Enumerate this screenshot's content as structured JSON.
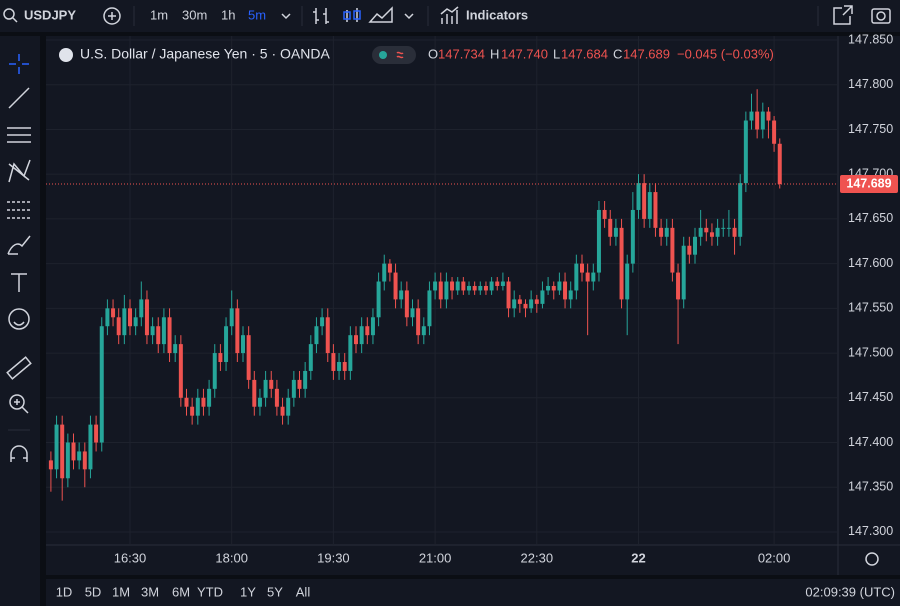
{
  "toolbar": {
    "symbol": "USDJPY",
    "intervals": [
      "1m",
      "30m",
      "1h",
      "5m"
    ],
    "indicators": "Indicators"
  },
  "legend": {
    "title": "U.S. Dollar / Japanese Yen · 5 · OANDA",
    "labels": [
      "O",
      "H",
      "L",
      "C"
    ],
    "values": [
      "147.734",
      "147.740",
      "147.684",
      "147.689"
    ],
    "change": "−0.045 (−0.03%)"
  },
  "range_buttons": [
    "1D",
    "5D",
    "1M",
    "3M",
    "6M",
    "YTD",
    "1Y",
    "5Y",
    "All"
  ],
  "clock": "02:09:39 (UTC)",
  "chart_data": {
    "type": "candlestick",
    "up_color": "#26a69a",
    "down_color": "#ef5350",
    "grid": true,
    "ylim": [
      147.2854,
      147.8545
    ],
    "yticks": [
      {
        "value": 147.3,
        "label": "147.300"
      },
      {
        "value": 147.35,
        "label": "147.350"
      },
      {
        "value": 147.4,
        "label": "147.400"
      },
      {
        "value": 147.45,
        "label": "147.450"
      },
      {
        "value": 147.5,
        "label": "147.500"
      },
      {
        "value": 147.55,
        "label": "147.550"
      },
      {
        "value": 147.6,
        "label": "147.600"
      },
      {
        "value": 147.65,
        "label": "147.650"
      },
      {
        "value": 147.7,
        "label": "147.700"
      },
      {
        "value": 147.75,
        "label": "147.750"
      },
      {
        "value": 147.8,
        "label": "147.800"
      },
      {
        "value": 147.85,
        "label": "147.850"
      }
    ],
    "categories": [
      null,
      null,
      null,
      null,
      null,
      null,
      null,
      null,
      null,
      null,
      null,
      null,
      null,
      null,
      "16:30",
      null,
      null,
      null,
      null,
      null,
      null,
      null,
      null,
      null,
      null,
      null,
      null,
      null,
      null,
      null,
      null,
      null,
      "18:00",
      null,
      null,
      null,
      null,
      null,
      null,
      null,
      null,
      null,
      null,
      null,
      null,
      null,
      null,
      null,
      null,
      null,
      "19:30",
      null,
      null,
      null,
      null,
      null,
      null,
      null,
      null,
      null,
      null,
      null,
      null,
      null,
      null,
      null,
      null,
      null,
      "21:00",
      null,
      null,
      null,
      null,
      null,
      null,
      null,
      null,
      null,
      null,
      null,
      null,
      null,
      null,
      null,
      null,
      null,
      "22:30",
      null,
      null,
      null,
      null,
      null,
      null,
      null,
      null,
      null,
      null,
      null,
      null,
      null,
      null,
      null,
      null,
      null,
      "22",
      null,
      null,
      null,
      null,
      null,
      null,
      null,
      null,
      null,
      null,
      null,
      null,
      null,
      null,
      null,
      null,
      null,
      null,
      null,
      null,
      null,
      null,
      null,
      "02:00",
      null
    ],
    "open": [
      147.38,
      147.37,
      147.42,
      147.36,
      147.4,
      147.38,
      147.39,
      147.37,
      147.42,
      147.4,
      147.53,
      147.55,
      147.54,
      147.52,
      147.55,
      147.53,
      147.54,
      147.56,
      147.52,
      147.53,
      147.51,
      147.54,
      147.5,
      147.51,
      147.45,
      147.44,
      147.43,
      147.45,
      147.44,
      147.46,
      147.5,
      147.49,
      147.53,
      147.55,
      147.5,
      147.52,
      147.47,
      147.44,
      147.45,
      147.47,
      147.46,
      147.44,
      147.43,
      147.45,
      147.47,
      147.46,
      147.48,
      147.51,
      147.53,
      147.54,
      147.5,
      147.48,
      147.49,
      147.48,
      147.52,
      147.51,
      147.53,
      147.52,
      147.54,
      147.58,
      147.6,
      147.59,
      147.56,
      147.57,
      147.54,
      147.55,
      147.52,
      147.53,
      147.57,
      147.58,
      147.56,
      147.58,
      147.57,
      147.58,
      147.57,
      147.575,
      147.57,
      147.575,
      147.57,
      147.58,
      147.575,
      147.58,
      147.55,
      147.56,
      147.555,
      147.55,
      147.56,
      147.555,
      147.57,
      147.575,
      147.57,
      147.58,
      147.56,
      147.57,
      147.6,
      147.59,
      147.58,
      147.59,
      147.66,
      147.65,
      147.63,
      147.64,
      147.56,
      147.6,
      147.66,
      147.69,
      147.65,
      147.68,
      147.64,
      147.63,
      147.64,
      147.59,
      147.56,
      147.62,
      147.61,
      147.63,
      147.64,
      147.635,
      147.63,
      147.64,
      147.64,
      147.64,
      147.63,
      147.69,
      147.76,
      147.77,
      147.75,
      147.77,
      147.76,
      147.734
    ],
    "high": [
      147.39,
      147.43,
      147.43,
      147.41,
      147.41,
      147.4,
      147.4,
      147.43,
      147.43,
      147.54,
      147.56,
      147.56,
      147.55,
      147.565,
      147.56,
      147.55,
      147.58,
      147.57,
      147.54,
      147.54,
      147.55,
      147.55,
      147.52,
      147.52,
      147.46,
      147.45,
      147.46,
      147.46,
      147.47,
      147.51,
      147.51,
      147.54,
      147.57,
      147.56,
      147.53,
      147.53,
      147.48,
      147.46,
      147.48,
      147.48,
      147.47,
      147.45,
      147.46,
      147.48,
      147.48,
      147.49,
      147.52,
      147.54,
      147.55,
      147.55,
      147.51,
      147.5,
      147.5,
      147.53,
      147.53,
      147.54,
      147.54,
      147.55,
      147.59,
      147.61,
      147.605,
      147.6,
      147.58,
      147.58,
      147.56,
      147.56,
      147.54,
      147.58,
      147.59,
      147.59,
      147.59,
      147.585,
      147.585,
      147.585,
      147.58,
      147.58,
      147.58,
      147.58,
      147.585,
      147.585,
      147.59,
      147.585,
      147.57,
      147.565,
      147.56,
      147.57,
      147.565,
      147.58,
      147.585,
      147.58,
      147.59,
      147.59,
      147.58,
      147.61,
      147.61,
      147.6,
      147.6,
      147.67,
      147.67,
      147.66,
      147.65,
      147.65,
      147.61,
      147.68,
      147.7,
      147.7,
      147.69,
      147.69,
      147.65,
      147.65,
      147.65,
      147.6,
      147.63,
      147.63,
      147.64,
      147.66,
      147.65,
      147.645,
      147.65,
      147.65,
      147.66,
      147.65,
      147.7,
      147.77,
      147.79,
      147.795,
      147.78,
      147.775,
      147.765,
      147.74
    ],
    "low": [
      147.345,
      147.36,
      147.335,
      147.35,
      147.37,
      147.37,
      147.35,
      147.36,
      147.39,
      147.39,
      147.52,
      147.53,
      147.51,
      147.51,
      147.52,
      147.52,
      147.53,
      147.51,
      147.51,
      147.5,
      147.5,
      147.49,
      147.49,
      147.44,
      147.43,
      147.42,
      147.42,
      147.43,
      147.43,
      147.45,
      147.48,
      147.48,
      147.52,
      147.49,
      147.49,
      147.46,
      147.43,
      147.43,
      147.44,
      147.45,
      147.43,
      147.42,
      147.42,
      147.44,
      147.45,
      147.45,
      147.47,
      147.5,
      147.52,
      147.49,
      147.47,
      147.47,
      147.47,
      147.47,
      147.5,
      147.5,
      147.51,
      147.51,
      147.53,
      147.57,
      147.58,
      147.55,
      147.55,
      147.53,
      147.53,
      147.51,
      147.51,
      147.52,
      147.56,
      147.55,
      147.55,
      147.56,
      147.565,
      147.565,
      147.565,
      147.565,
      147.565,
      147.565,
      147.565,
      147.57,
      147.57,
      147.54,
      147.54,
      147.545,
      147.54,
      147.545,
      147.545,
      147.55,
      147.565,
      147.56,
      147.565,
      147.55,
      147.55,
      147.56,
      147.58,
      147.52,
      147.57,
      147.58,
      147.64,
      147.62,
      147.62,
      147.55,
      147.52,
      147.59,
      147.65,
      147.64,
      147.64,
      147.63,
      147.62,
      147.62,
      147.58,
      147.51,
      147.55,
      147.6,
      147.6,
      147.62,
      147.625,
      147.62,
      147.62,
      147.63,
      147.63,
      147.61,
      147.62,
      147.68,
      147.75,
      147.74,
      147.74,
      147.74,
      147.725,
      147.684
    ],
    "close": [
      147.37,
      147.42,
      147.36,
      147.4,
      147.38,
      147.39,
      147.37,
      147.42,
      147.4,
      147.53,
      147.55,
      147.54,
      147.52,
      147.55,
      147.53,
      147.54,
      147.56,
      147.52,
      147.53,
      147.51,
      147.54,
      147.5,
      147.51,
      147.45,
      147.44,
      147.43,
      147.45,
      147.44,
      147.46,
      147.5,
      147.49,
      147.53,
      147.55,
      147.5,
      147.52,
      147.47,
      147.44,
      147.45,
      147.47,
      147.46,
      147.44,
      147.43,
      147.45,
      147.47,
      147.46,
      147.48,
      147.51,
      147.53,
      147.54,
      147.5,
      147.48,
      147.49,
      147.48,
      147.52,
      147.51,
      147.53,
      147.52,
      147.54,
      147.58,
      147.6,
      147.59,
      147.56,
      147.57,
      147.54,
      147.55,
      147.52,
      147.53,
      147.57,
      147.58,
      147.56,
      147.58,
      147.57,
      147.58,
      147.57,
      147.575,
      147.57,
      147.575,
      147.57,
      147.58,
      147.575,
      147.58,
      147.55,
      147.56,
      147.555,
      147.55,
      147.56,
      147.555,
      147.57,
      147.575,
      147.57,
      147.58,
      147.56,
      147.57,
      147.6,
      147.59,
      147.58,
      147.59,
      147.66,
      147.65,
      147.63,
      147.64,
      147.56,
      147.6,
      147.66,
      147.69,
      147.65,
      147.68,
      147.64,
      147.63,
      147.64,
      147.59,
      147.56,
      147.62,
      147.61,
      147.63,
      147.64,
      147.635,
      147.63,
      147.64,
      147.64,
      147.64,
      147.63,
      147.69,
      147.76,
      147.77,
      147.75,
      147.77,
      147.76,
      147.734,
      147.689
    ]
  }
}
